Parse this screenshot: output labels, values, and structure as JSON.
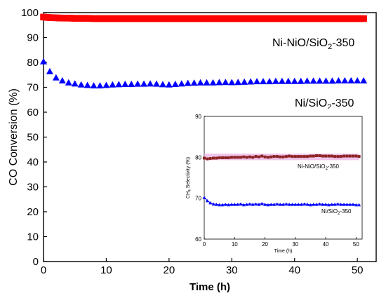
{
  "chart_data": [
    {
      "type": "scatter",
      "title": "",
      "xlabel": "Time (h)",
      "ylabel": "CO  Conversion (%)",
      "xlim": [
        0,
        53
      ],
      "ylim": [
        0,
        100
      ],
      "xticks": [
        "0",
        "10",
        "20",
        "30",
        "40",
        "50"
      ],
      "yticks": [
        "0",
        "10",
        "20",
        "30",
        "40",
        "50",
        "60",
        "70",
        "80",
        "90",
        "100"
      ],
      "grid": false,
      "series": [
        {
          "name": "Ni-NiO/SiO2-350",
          "name_main": "Ni-NiO/SiO",
          "name_sub": "2",
          "name_tail": "-350",
          "color": "#ff0000",
          "marker": "square",
          "x": [
            0,
            1,
            2,
            3,
            4,
            5,
            6,
            7,
            8,
            9,
            10,
            11,
            12,
            13,
            14,
            15,
            16,
            17,
            18,
            19,
            20,
            21,
            22,
            23,
            24,
            25,
            26,
            27,
            28,
            29,
            30,
            31,
            32,
            33,
            34,
            35,
            36,
            37,
            38,
            39,
            40,
            41,
            42,
            43,
            44,
            45,
            46,
            47,
            48,
            49,
            50,
            51
          ],
          "y": [
            98.2,
            98,
            97.9,
            97.8,
            97.8,
            97.7,
            97.7,
            97.7,
            97.6,
            97.6,
            97.6,
            97.6,
            97.6,
            97.6,
            97.6,
            97.6,
            97.6,
            97.6,
            97.6,
            97.6,
            97.6,
            97.6,
            97.6,
            97.6,
            97.6,
            97.6,
            97.6,
            97.6,
            97.6,
            97.6,
            97.6,
            97.6,
            97.6,
            97.6,
            97.6,
            97.6,
            97.6,
            97.6,
            97.6,
            97.6,
            97.6,
            97.6,
            97.6,
            97.6,
            97.6,
            97.6,
            97.6,
            97.6,
            97.6,
            97.6,
            97.6,
            97.6
          ]
        },
        {
          "name": "Ni/SiO2-350",
          "name_main": "Ni/SiO",
          "name_sub": "2",
          "name_tail": "-350",
          "color": "#0000ff",
          "marker": "triangle",
          "x": [
            0,
            1,
            2,
            3,
            4,
            5,
            6,
            7,
            8,
            9,
            10,
            11,
            12,
            13,
            14,
            15,
            16,
            17,
            18,
            19,
            20,
            21,
            22,
            23,
            24,
            25,
            26,
            27,
            28,
            29,
            30,
            31,
            32,
            33,
            34,
            35,
            36,
            37,
            38,
            39,
            40,
            41,
            42,
            43,
            44,
            45,
            46,
            47,
            48,
            49,
            50,
            51
          ],
          "y": [
            80.5,
            76.5,
            74,
            72.8,
            72,
            71.6,
            71.2,
            71,
            70.8,
            70.8,
            71,
            71.2,
            71.3,
            71.4,
            71.4,
            71.5,
            71.5,
            71.6,
            71.5,
            71.3,
            71.2,
            71.4,
            71.6,
            71.8,
            71.9,
            72,
            72,
            72,
            72.1,
            72.2,
            72.1,
            72.2,
            72.3,
            72.4,
            72.5,
            72.5,
            72.5,
            72.6,
            72.6,
            72.6,
            72.6,
            72.6,
            72.7,
            72.7,
            72.7,
            72.7,
            72.7,
            72.8,
            72.8,
            72.8,
            72.8,
            72.8
          ]
        }
      ]
    },
    {
      "type": "line",
      "title": "",
      "xlabel": "Time (h)",
      "ylabel": "CH4 Selectivity (%)",
      "ylabel_main_pre": "CH",
      "ylabel_sub": "4",
      "ylabel_main_post": " Selectivity (%)",
      "xlim": [
        0,
        52
      ],
      "ylim": [
        60,
        90
      ],
      "xticks": [
        "0",
        "10",
        "20",
        "30",
        "40",
        "50"
      ],
      "yticks": [
        "60",
        "70",
        "80",
        "90"
      ],
      "grid": false,
      "series": [
        {
          "name": "Ni-NiO/SiO2-350",
          "name_main": "Ni-NiO/SiO",
          "name_sub": "2",
          "name_tail": "-350",
          "color": "#8b2222",
          "band_color": "#e8a6e0",
          "marker": "square",
          "x": [
            0,
            1,
            2,
            3,
            4,
            5,
            6,
            7,
            8,
            9,
            10,
            11,
            12,
            13,
            14,
            15,
            16,
            17,
            18,
            19,
            20,
            21,
            22,
            23,
            24,
            25,
            26,
            27,
            28,
            29,
            30,
            31,
            32,
            33,
            34,
            35,
            36,
            37,
            38,
            39,
            40,
            41,
            42,
            43,
            44,
            45,
            46,
            47,
            48,
            49,
            50,
            51
          ],
          "y": [
            79.8,
            79.6,
            79.7,
            79.8,
            79.8,
            79.9,
            79.9,
            79.9,
            79.9,
            80,
            80,
            80,
            80,
            80.1,
            80,
            80.1,
            80,
            80.2,
            80.1,
            80.3,
            80.1,
            80,
            80.1,
            80.2,
            80.2,
            80.1,
            80.1,
            80.2,
            80.3,
            80.2,
            80.2,
            80.2,
            80.2,
            80.2,
            80.2,
            80.3,
            80.3,
            80.4,
            80.4,
            80.3,
            80.3,
            80.3,
            80.3,
            80.2,
            80.2,
            80.2,
            80.3,
            80.3,
            80.3,
            80.3,
            80.3,
            80.2
          ]
        },
        {
          "name": "Ni/SiO2-350",
          "name_main": "Ni/SiO",
          "name_sub": "2",
          "name_tail": "-350",
          "color": "#0000ff",
          "marker": "triangle",
          "x": [
            0,
            1,
            2,
            3,
            4,
            5,
            6,
            7,
            8,
            9,
            10,
            11,
            12,
            13,
            14,
            15,
            16,
            17,
            18,
            19,
            20,
            21,
            22,
            23,
            24,
            25,
            26,
            27,
            28,
            29,
            30,
            31,
            32,
            33,
            34,
            35,
            36,
            37,
            38,
            39,
            40,
            41,
            42,
            43,
            44,
            45,
            46,
            47,
            48,
            49,
            50,
            51
          ],
          "y": [
            70.2,
            69.4,
            68.9,
            68.6,
            68.5,
            68.4,
            68.4,
            68.5,
            68.4,
            68.5,
            68.5,
            68.5,
            68.6,
            68.4,
            68.5,
            68.6,
            68.5,
            68.6,
            68.5,
            68.7,
            68.5,
            68.4,
            68.5,
            68.5,
            68.6,
            68.5,
            68.5,
            68.6,
            68.5,
            68.5,
            68.5,
            68.5,
            68.5,
            68.6,
            68.5,
            68.4,
            68.5,
            68.5,
            68.6,
            68.5,
            68.5,
            68.4,
            68.5,
            68.5,
            68.6,
            68.5,
            68.5,
            68.5,
            68.5,
            68.5,
            68.4,
            68.4
          ]
        }
      ]
    }
  ]
}
